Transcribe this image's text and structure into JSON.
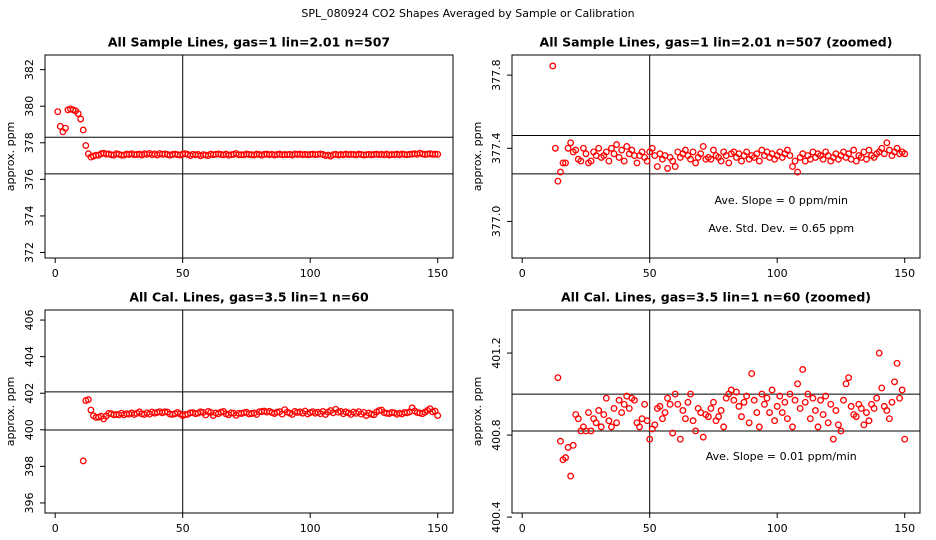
{
  "title": "SPL_080924  CO2 Shapes Averaged by Sample or Calibration",
  "chart_data": [
    {
      "type": "scatter",
      "title": "All Sample Lines, gas=1 lin=2.01 n=507",
      "y_label": "approx. ppm",
      "color": "#ff0000",
      "xlim": [
        -4,
        156
      ],
      "xticks": [
        0,
        50,
        100,
        150
      ],
      "ylim": [
        371.7,
        382.8
      ],
      "yticks": [
        372,
        374,
        376,
        378,
        380,
        382
      ],
      "hlines": [
        378.3,
        376.3
      ],
      "vline": 50,
      "x": [
        1,
        2,
        3,
        4,
        5,
        6,
        7,
        8,
        9,
        10,
        11,
        12,
        13,
        14,
        15,
        16,
        17,
        18,
        19,
        20,
        21,
        22,
        23,
        24,
        25,
        26,
        27,
        28,
        29,
        30,
        31,
        32,
        33,
        34,
        35,
        36,
        37,
        38,
        39,
        40,
        41,
        42,
        43,
        44,
        45,
        46,
        47,
        48,
        49,
        50,
        51,
        52,
        53,
        54,
        55,
        56,
        57,
        58,
        59,
        60,
        61,
        62,
        63,
        64,
        65,
        66,
        67,
        68,
        69,
        70,
        71,
        72,
        73,
        74,
        75,
        76,
        77,
        78,
        79,
        80,
        81,
        82,
        83,
        84,
        85,
        86,
        87,
        88,
        89,
        90,
        91,
        92,
        93,
        94,
        95,
        96,
        97,
        98,
        99,
        100,
        101,
        102,
        103,
        104,
        105,
        106,
        107,
        108,
        109,
        110,
        111,
        112,
        113,
        114,
        115,
        116,
        117,
        118,
        119,
        120,
        121,
        122,
        123,
        124,
        125,
        126,
        127,
        128,
        129,
        130,
        131,
        132,
        133,
        134,
        135,
        136,
        137,
        138,
        139,
        140,
        141,
        142,
        143,
        144,
        145,
        146,
        147,
        148,
        149,
        150
      ],
      "values": [
        379.7,
        378.9,
        378.6,
        378.8,
        379.8,
        379.85,
        379.8,
        379.75,
        379.6,
        379.3,
        378.7,
        377.85,
        377.4,
        377.22,
        377.27,
        377.32,
        377.32,
        377.4,
        377.43,
        377.38,
        377.39,
        377.34,
        377.33,
        377.4,
        377.37,
        377.32,
        377.33,
        377.38,
        377.36,
        377.4,
        377.35,
        377.36,
        377.38,
        377.33,
        377.4,
        377.37,
        377.42,
        377.35,
        377.39,
        377.33,
        377.41,
        377.37,
        377.39,
        377.36,
        377.32,
        377.36,
        377.38,
        377.35,
        377.33,
        377.38,
        377.4,
        377.36,
        377.3,
        377.37,
        377.34,
        377.36,
        377.29,
        377.35,
        377.33,
        377.3,
        377.38,
        377.35,
        377.37,
        377.39,
        377.36,
        377.34,
        377.38,
        377.32,
        377.35,
        377.37,
        377.41,
        377.34,
        377.35,
        377.34,
        377.39,
        377.36,
        377.35,
        377.33,
        377.38,
        377.36,
        377.32,
        377.37,
        377.38,
        377.35,
        377.37,
        377.33,
        377.36,
        377.38,
        377.34,
        377.36,
        377.35,
        377.37,
        377.33,
        377.39,
        377.36,
        377.38,
        377.35,
        377.37,
        377.34,
        377.36,
        377.38,
        377.35,
        377.37,
        377.39,
        377.36,
        377.3,
        377.33,
        377.27,
        377.35,
        377.37,
        377.33,
        377.36,
        377.34,
        377.38,
        377.35,
        377.37,
        377.36,
        377.34,
        377.38,
        377.36,
        377.33,
        377.35,
        377.37,
        377.34,
        377.36,
        377.38,
        377.35,
        377.37,
        377.34,
        377.39,
        377.33,
        377.36,
        377.35,
        377.38,
        377.34,
        377.39,
        377.36,
        377.35,
        377.37,
        377.38,
        377.4,
        377.37,
        377.43,
        377.39,
        377.36,
        377.38,
        377.4,
        377.37,
        377.38,
        377.37
      ]
    },
    {
      "type": "scatter",
      "title": "All Sample Lines, gas=1 lin=2.01 n=507 (zoomed)",
      "y_label": "approx. ppm",
      "color": "#ff0000",
      "xlim": [
        -4,
        156
      ],
      "xticks": [
        0,
        50,
        100,
        150
      ],
      "ylim": [
        376.8,
        377.91
      ],
      "yticks": [
        {
          "value": 377,
          "label": "377.0"
        },
        377.4,
        377.8
      ],
      "hlines": [
        377.47,
        377.26
      ],
      "vline": 50,
      "annotations": [
        "Ave. Slope =  0  ppm/min",
        "Ave. Std. Dev. =  0.65  ppm"
      ],
      "x": [
        12,
        13,
        14,
        15,
        16,
        17,
        18,
        19,
        20,
        21,
        22,
        23,
        24,
        25,
        26,
        27,
        28,
        29,
        30,
        31,
        32,
        33,
        34,
        35,
        36,
        37,
        38,
        39,
        40,
        41,
        42,
        43,
        44,
        45,
        46,
        47,
        48,
        49,
        50,
        51,
        52,
        53,
        54,
        55,
        56,
        57,
        58,
        59,
        60,
        61,
        62,
        63,
        64,
        65,
        66,
        67,
        68,
        69,
        70,
        71,
        72,
        73,
        74,
        75,
        76,
        77,
        78,
        79,
        80,
        81,
        82,
        83,
        84,
        85,
        86,
        87,
        88,
        89,
        90,
        91,
        92,
        93,
        94,
        95,
        96,
        97,
        98,
        99,
        100,
        101,
        102,
        103,
        104,
        105,
        106,
        107,
        108,
        109,
        110,
        111,
        112,
        113,
        114,
        115,
        116,
        117,
        118,
        119,
        120,
        121,
        122,
        123,
        124,
        125,
        126,
        127,
        128,
        129,
        130,
        131,
        132,
        133,
        134,
        135,
        136,
        137,
        138,
        139,
        140,
        141,
        142,
        143,
        144,
        145,
        146,
        147,
        148,
        149,
        150
      ],
      "values": [
        377.85,
        377.4,
        377.22,
        377.27,
        377.32,
        377.32,
        377.4,
        377.43,
        377.38,
        377.39,
        377.34,
        377.33,
        377.4,
        377.37,
        377.32,
        377.33,
        377.38,
        377.36,
        377.4,
        377.35,
        377.36,
        377.38,
        377.33,
        377.4,
        377.37,
        377.42,
        377.35,
        377.39,
        377.33,
        377.41,
        377.37,
        377.39,
        377.36,
        377.32,
        377.36,
        377.38,
        377.35,
        377.33,
        377.38,
        377.4,
        377.36,
        377.3,
        377.37,
        377.34,
        377.36,
        377.29,
        377.35,
        377.33,
        377.3,
        377.38,
        377.35,
        377.37,
        377.39,
        377.36,
        377.34,
        377.38,
        377.32,
        377.35,
        377.37,
        377.41,
        377.34,
        377.35,
        377.34,
        377.39,
        377.36,
        377.35,
        377.33,
        377.38,
        377.36,
        377.32,
        377.37,
        377.38,
        377.35,
        377.37,
        377.33,
        377.36,
        377.38,
        377.34,
        377.36,
        377.35,
        377.37,
        377.33,
        377.39,
        377.36,
        377.38,
        377.35,
        377.37,
        377.34,
        377.36,
        377.38,
        377.35,
        377.37,
        377.39,
        377.36,
        377.3,
        377.33,
        377.27,
        377.35,
        377.37,
        377.33,
        377.36,
        377.34,
        377.38,
        377.35,
        377.37,
        377.36,
        377.34,
        377.38,
        377.36,
        377.33,
        377.35,
        377.37,
        377.34,
        377.36,
        377.38,
        377.35,
        377.37,
        377.34,
        377.39,
        377.33,
        377.36,
        377.35,
        377.38,
        377.34,
        377.39,
        377.36,
        377.35,
        377.37,
        377.38,
        377.4,
        377.37,
        377.43,
        377.39,
        377.36,
        377.38,
        377.4,
        377.37,
        377.38,
        377.37
      ]
    },
    {
      "type": "scatter",
      "title": "All Cal. Lines, gas=3.5 lin=1 n=60",
      "y_label": "approx. ppm",
      "color": "#ff0000",
      "xlim": [
        -4,
        156
      ],
      "xticks": [
        0,
        50,
        100,
        150
      ],
      "ylim": [
        395.45,
        406.55
      ],
      "yticks": [
        396,
        398,
        400,
        402,
        404,
        406
      ],
      "hlines": [
        402.07,
        399.99
      ],
      "vline": 50,
      "x": [
        11,
        12,
        13,
        14,
        15,
        16,
        17,
        18,
        19,
        20,
        21,
        22,
        23,
        24,
        25,
        26,
        27,
        28,
        29,
        30,
        31,
        32,
        33,
        34,
        35,
        36,
        37,
        38,
        39,
        40,
        41,
        42,
        43,
        44,
        45,
        46,
        47,
        48,
        49,
        50,
        51,
        52,
        53,
        54,
        55,
        56,
        57,
        58,
        59,
        60,
        61,
        62,
        63,
        64,
        65,
        66,
        67,
        68,
        69,
        70,
        71,
        72,
        73,
        74,
        75,
        76,
        77,
        78,
        79,
        80,
        81,
        82,
        83,
        84,
        85,
        86,
        87,
        88,
        89,
        90,
        91,
        92,
        93,
        94,
        95,
        96,
        97,
        98,
        99,
        100,
        101,
        102,
        103,
        104,
        105,
        106,
        107,
        108,
        109,
        110,
        111,
        112,
        113,
        114,
        115,
        116,
        117,
        118,
        119,
        120,
        121,
        122,
        123,
        124,
        125,
        126,
        127,
        128,
        129,
        130,
        131,
        132,
        133,
        134,
        135,
        136,
        137,
        138,
        139,
        140,
        141,
        142,
        143,
        144,
        145,
        146,
        147,
        148,
        149,
        150
      ],
      "values": [
        398.3,
        401.6,
        401.65,
        401.08,
        400.77,
        400.68,
        400.69,
        400.74,
        400.6,
        400.75,
        400.9,
        400.88,
        400.82,
        400.84,
        400.82,
        400.91,
        400.82,
        400.88,
        400.86,
        400.92,
        400.84,
        400.9,
        400.98,
        400.87,
        400.84,
        400.93,
        400.86,
        400.97,
        400.91,
        400.95,
        400.99,
        400.93,
        400.98,
        400.97,
        400.86,
        400.84,
        400.88,
        400.95,
        400.87,
        400.78,
        400.83,
        400.85,
        400.93,
        400.94,
        400.88,
        400.91,
        400.98,
        400.95,
        400.81,
        401.0,
        400.95,
        400.78,
        400.92,
        400.88,
        400.96,
        401.0,
        400.87,
        400.82,
        400.93,
        400.91,
        400.79,
        400.9,
        400.89,
        400.93,
        400.96,
        400.87,
        400.89,
        400.92,
        400.84,
        400.98,
        401.0,
        401.02,
        400.97,
        401.01,
        400.94,
        400.89,
        400.96,
        400.99,
        400.86,
        401.1,
        400.97,
        400.91,
        400.84,
        401.0,
        400.95,
        400.98,
        400.91,
        401.02,
        400.87,
        400.94,
        400.99,
        400.91,
        400.96,
        400.88,
        401.0,
        400.84,
        400.97,
        401.05,
        400.93,
        401.12,
        400.96,
        401.0,
        400.88,
        400.98,
        400.92,
        400.84,
        400.97,
        400.9,
        400.99,
        400.86,
        400.95,
        400.78,
        400.92,
        400.85,
        400.82,
        400.97,
        401.05,
        401.08,
        400.94,
        400.9,
        400.89,
        400.95,
        400.93,
        400.85,
        400.91,
        400.87,
        400.95,
        400.93,
        400.98,
        401.2,
        401.03,
        400.94,
        400.92,
        400.88,
        400.96,
        401.06,
        401.15,
        400.98,
        401.02,
        400.78
      ]
    },
    {
      "type": "scatter",
      "title": "All Cal. Lines, gas=3.5 lin=1 n=60 (zoomed)",
      "y_label": "approx. ppm",
      "color": "#ff0000",
      "xlim": [
        -4,
        156
      ],
      "xticks": [
        0,
        50,
        100,
        150
      ],
      "ylim": [
        400.42,
        401.41
      ],
      "yticks": [
        400.4,
        400.8,
        401.2
      ],
      "hlines": [
        401.0,
        400.82
      ],
      "vline": 50,
      "annotations": [
        "Ave. Slope =  0.01  ppm/min"
      ],
      "x": [
        14,
        15,
        16,
        17,
        18,
        19,
        20,
        21,
        22,
        23,
        24,
        25,
        26,
        27,
        28,
        29,
        30,
        31,
        32,
        33,
        34,
        35,
        36,
        37,
        38,
        39,
        40,
        41,
        42,
        43,
        44,
        45,
        46,
        47,
        48,
        49,
        50,
        51,
        52,
        53,
        54,
        55,
        56,
        57,
        58,
        59,
        60,
        61,
        62,
        63,
        64,
        65,
        66,
        67,
        68,
        69,
        70,
        71,
        72,
        73,
        74,
        75,
        76,
        77,
        78,
        79,
        80,
        81,
        82,
        83,
        84,
        85,
        86,
        87,
        88,
        89,
        90,
        91,
        92,
        93,
        94,
        95,
        96,
        97,
        98,
        99,
        100,
        101,
        102,
        103,
        104,
        105,
        106,
        107,
        108,
        109,
        110,
        111,
        112,
        113,
        114,
        115,
        116,
        117,
        118,
        119,
        120,
        121,
        122,
        123,
        124,
        125,
        126,
        127,
        128,
        129,
        130,
        131,
        132,
        133,
        134,
        135,
        136,
        137,
        138,
        139,
        140,
        141,
        142,
        143,
        144,
        145,
        146,
        147,
        148,
        149,
        150
      ],
      "values": [
        401.08,
        400.77,
        400.68,
        400.69,
        400.74,
        400.6,
        400.75,
        400.9,
        400.88,
        400.82,
        400.84,
        400.82,
        400.91,
        400.82,
        400.88,
        400.86,
        400.92,
        400.84,
        400.9,
        400.98,
        400.87,
        400.84,
        400.93,
        400.86,
        400.97,
        400.91,
        400.95,
        400.99,
        400.93,
        400.98,
        400.97,
        400.86,
        400.84,
        400.88,
        400.95,
        400.87,
        400.78,
        400.83,
        400.85,
        400.93,
        400.94,
        400.88,
        400.91,
        400.98,
        400.95,
        400.81,
        401.0,
        400.95,
        400.78,
        400.92,
        400.88,
        400.96,
        401.0,
        400.87,
        400.82,
        400.93,
        400.91,
        400.79,
        400.9,
        400.89,
        400.93,
        400.96,
        400.87,
        400.89,
        400.92,
        400.84,
        400.98,
        401.0,
        401.02,
        400.97,
        401.01,
        400.94,
        400.89,
        400.96,
        400.99,
        400.86,
        401.1,
        400.97,
        400.91,
        400.84,
        401.0,
        400.95,
        400.98,
        400.91,
        401.02,
        400.87,
        400.94,
        400.99,
        400.91,
        400.96,
        400.88,
        401.0,
        400.84,
        400.97,
        401.05,
        400.93,
        401.12,
        400.96,
        401.0,
        400.88,
        400.98,
        400.92,
        400.84,
        400.97,
        400.9,
        400.99,
        400.86,
        400.95,
        400.78,
        400.92,
        400.85,
        400.82,
        400.97,
        401.05,
        401.08,
        400.94,
        400.9,
        400.89,
        400.95,
        400.93,
        400.85,
        400.91,
        400.87,
        400.95,
        400.93,
        400.98,
        401.2,
        401.03,
        400.94,
        400.92,
        400.88,
        400.96,
        401.06,
        401.15,
        400.98,
        401.02,
        400.78
      ]
    }
  ]
}
